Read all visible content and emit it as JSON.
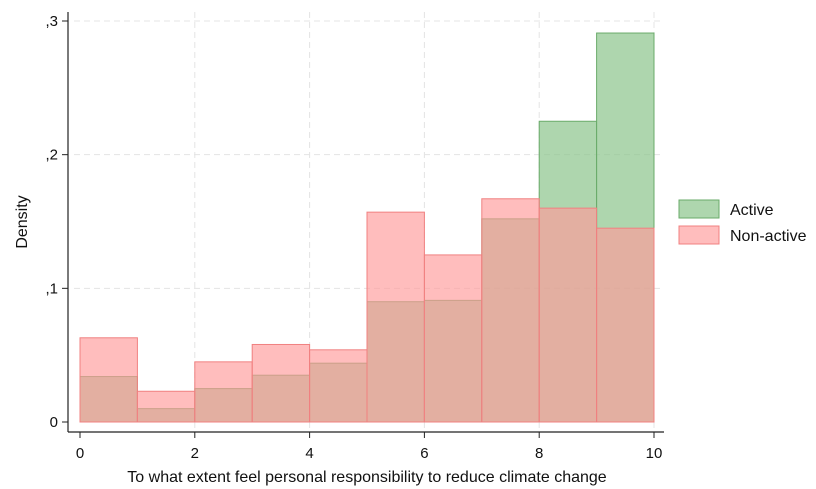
{
  "chart_data": {
    "type": "bar",
    "subtype": "overlaid-histogram",
    "title": "",
    "xlabel": "To what extent feel personal responsibility to reduce climate change",
    "ylabel": "Density",
    "xlim": [
      0,
      10
    ],
    "ylim": [
      0,
      0.3
    ],
    "x_ticks": [
      {
        "value": 0,
        "label": "0"
      },
      {
        "value": 2,
        "label": "2"
      },
      {
        "value": 4,
        "label": "4"
      },
      {
        "value": 6,
        "label": "6"
      },
      {
        "value": 8,
        "label": "8"
      },
      {
        "value": 10,
        "label": "10"
      }
    ],
    "y_ticks": [
      {
        "value": 0,
        "label": "0"
      },
      {
        "value": 0.1,
        "label": ",1"
      },
      {
        "value": 0.2,
        "label": ",2"
      },
      {
        "value": 0.3,
        "label": ",3"
      }
    ],
    "grid": true,
    "legend_position": "right",
    "bin_edges": [
      0,
      1,
      2,
      3,
      4,
      5,
      6,
      7,
      8,
      9,
      10
    ],
    "series": [
      {
        "name": "Active",
        "color": "#8cc58c",
        "values": [
          0.034,
          0.01,
          0.025,
          0.035,
          0.044,
          0.09,
          0.091,
          0.152,
          0.225,
          0.291
        ]
      },
      {
        "name": "Non-active",
        "color": "#ff9a9a",
        "values": [
          0.063,
          0.023,
          0.045,
          0.058,
          0.054,
          0.157,
          0.125,
          0.167,
          0.16,
          0.145
        ]
      }
    ],
    "overlap_color": "#d4a085"
  }
}
